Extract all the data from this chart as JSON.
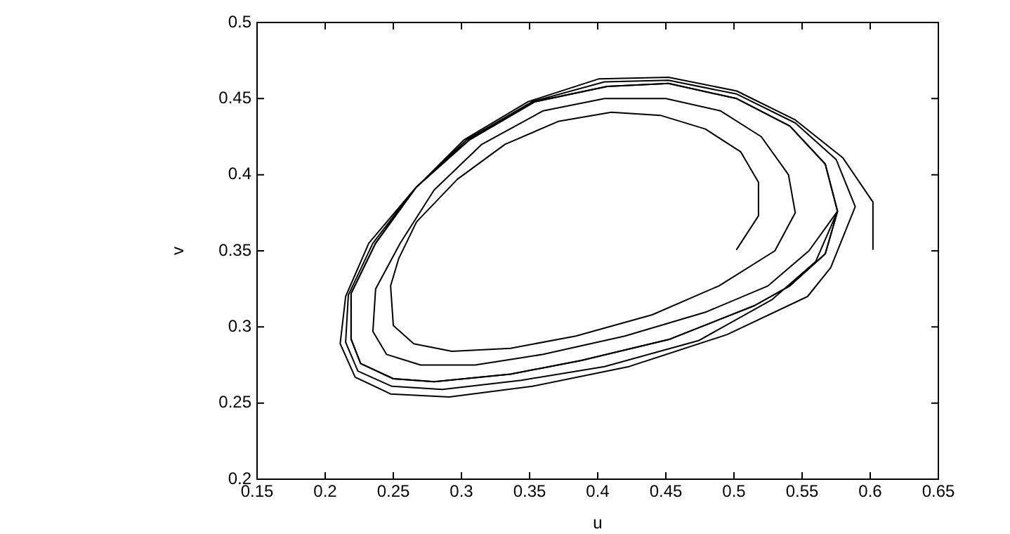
{
  "chart_data": {
    "type": "line",
    "xlabel": "u",
    "ylabel": "v",
    "xlim": [
      0.15,
      0.65
    ],
    "ylim": [
      0.2,
      0.5
    ],
    "xticks": [
      0.15,
      0.2,
      0.25,
      0.3,
      0.35,
      0.4,
      0.45,
      0.5,
      0.55,
      0.6,
      0.65
    ],
    "yticks": [
      0.2,
      0.25,
      0.3,
      0.35,
      0.4,
      0.45,
      0.5
    ],
    "series": [
      {
        "color": "#000000",
        "x": [
          0.502,
          0.518,
          0.518,
          0.505,
          0.479,
          0.446,
          0.41,
          0.371,
          0.332,
          0.297,
          0.267,
          0.254,
          0.248,
          0.25,
          0.265,
          0.293,
          0.336,
          0.384,
          0.44,
          0.489,
          0.53,
          0.545,
          0.54,
          0.52,
          0.49,
          0.45,
          0.405,
          0.36,
          0.315,
          0.28,
          0.255,
          0.237,
          0.235,
          0.245,
          0.27,
          0.31,
          0.36,
          0.42,
          0.48,
          0.525,
          0.555,
          0.576,
          0.567,
          0.541,
          0.502,
          0.452,
          0.407,
          0.354,
          0.306,
          0.267,
          0.237,
          0.219,
          0.219,
          0.226,
          0.25,
          0.28,
          0.336,
          0.388,
          0.453,
          0.515,
          0.541,
          0.567,
          0.576,
          0.567,
          0.541,
          0.502,
          0.452,
          0.407,
          0.354,
          0.306,
          0.267,
          0.237,
          0.219,
          0.219,
          0.226,
          0.25,
          0.28,
          0.336,
          0.388,
          0.453,
          0.515,
          0.541,
          0.567,
          0.576
        ],
        "values": [
          0.351,
          0.373,
          0.395,
          0.415,
          0.43,
          0.439,
          0.441,
          0.435,
          0.42,
          0.397,
          0.369,
          0.345,
          0.327,
          0.301,
          0.289,
          0.284,
          0.286,
          0.294,
          0.308,
          0.327,
          0.35,
          0.375,
          0.4,
          0.425,
          0.442,
          0.45,
          0.45,
          0.442,
          0.42,
          0.39,
          0.355,
          0.325,
          0.297,
          0.282,
          0.275,
          0.275,
          0.282,
          0.294,
          0.31,
          0.327,
          0.35,
          0.376,
          0.407,
          0.432,
          0.45,
          0.46,
          0.458,
          0.448,
          0.423,
          0.392,
          0.355,
          0.322,
          0.292,
          0.276,
          0.266,
          0.264,
          0.269,
          0.278,
          0.292,
          0.314,
          0.327,
          0.348,
          0.376,
          0.407,
          0.432,
          0.45,
          0.46,
          0.458,
          0.448,
          0.423,
          0.392,
          0.355,
          0.322,
          0.292,
          0.276,
          0.266,
          0.264,
          0.269,
          0.278,
          0.292,
          0.314,
          0.327,
          0.348,
          0.376
        ]
      },
      {
        "color": "#000000",
        "x": [
          0.602,
          0.602,
          0.58,
          0.545,
          0.502,
          0.452,
          0.401,
          0.349,
          0.302,
          0.265,
          0.232,
          0.215,
          0.211,
          0.222,
          0.248,
          0.291,
          0.352,
          0.423,
          0.495,
          0.554,
          0.571,
          0.589,
          0.575,
          0.545,
          0.502,
          0.452,
          0.405,
          0.352,
          0.304,
          0.266,
          0.235,
          0.217,
          0.215,
          0.224,
          0.249,
          0.286,
          0.344,
          0.405,
          0.474,
          0.528,
          0.56,
          0.576,
          0.567,
          0.541,
          0.502,
          0.452,
          0.407,
          0.354,
          0.306,
          0.267,
          0.237,
          0.219,
          0.219,
          0.226,
          0.25,
          0.28,
          0.336,
          0.388,
          0.453,
          0.515,
          0.541,
          0.567,
          0.576,
          0.567,
          0.541,
          0.502,
          0.452,
          0.407,
          0.354,
          0.306,
          0.267,
          0.237,
          0.219,
          0.219,
          0.226,
          0.25,
          0.28,
          0.336,
          0.388,
          0.453,
          0.515,
          0.541,
          0.567,
          0.576
        ],
        "values": [
          0.351,
          0.382,
          0.411,
          0.436,
          0.455,
          0.464,
          0.463,
          0.448,
          0.423,
          0.39,
          0.355,
          0.32,
          0.289,
          0.267,
          0.256,
          0.254,
          0.261,
          0.274,
          0.295,
          0.32,
          0.339,
          0.379,
          0.41,
          0.434,
          0.453,
          0.462,
          0.461,
          0.448,
          0.423,
          0.391,
          0.355,
          0.321,
          0.29,
          0.271,
          0.261,
          0.259,
          0.265,
          0.274,
          0.291,
          0.318,
          0.343,
          0.376,
          0.407,
          0.432,
          0.45,
          0.46,
          0.458,
          0.448,
          0.423,
          0.392,
          0.355,
          0.322,
          0.292,
          0.276,
          0.266,
          0.264,
          0.269,
          0.278,
          0.292,
          0.314,
          0.327,
          0.348,
          0.376,
          0.407,
          0.432,
          0.45,
          0.46,
          0.458,
          0.448,
          0.423,
          0.392,
          0.355,
          0.322,
          0.292,
          0.276,
          0.266,
          0.264,
          0.269,
          0.278,
          0.292,
          0.314,
          0.327,
          0.348,
          0.376
        ]
      }
    ]
  }
}
